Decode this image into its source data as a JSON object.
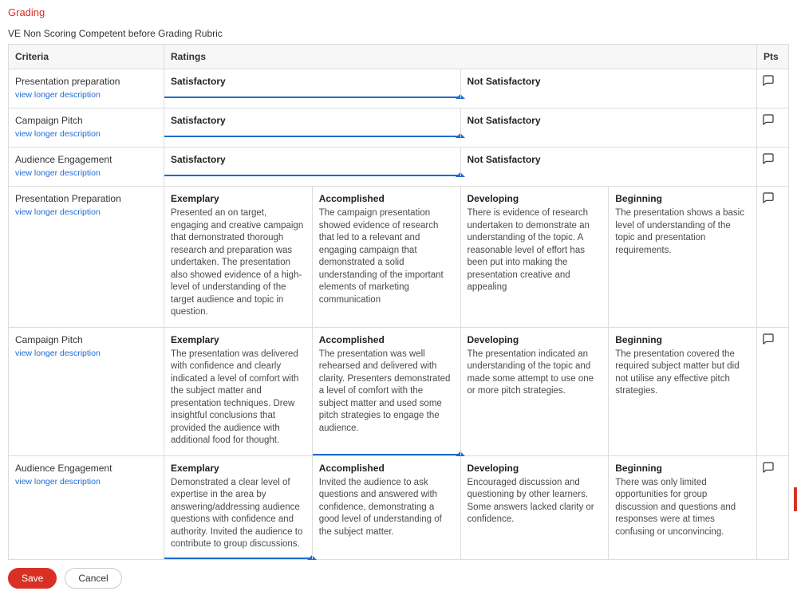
{
  "colors": {
    "accent_red": "#d93025",
    "link_blue": "#1f6bd1",
    "border_gray": "#dddddd",
    "header_bg": "#f7f7f7",
    "text_dark": "#333333",
    "desc_gray": "#4a4a4a"
  },
  "page_accent_label": "Grading",
  "rubric_title": "VE Non Scoring Competent before Grading Rubric",
  "headers": {
    "criteria": "Criteria",
    "ratings": "Ratings",
    "pts": "Pts"
  },
  "view_longer_description": "view longer description",
  "buttons": {
    "save": "Save",
    "cancel": "Cancel"
  },
  "rows": [
    {
      "criteria": "Presentation preparation",
      "ratings": [
        {
          "title": "Satisfactory",
          "desc": "",
          "selected": true
        },
        {
          "title": "Not Satisfactory",
          "desc": "",
          "selected": false
        }
      ]
    },
    {
      "criteria": "Campaign Pitch",
      "ratings": [
        {
          "title": "Satisfactory",
          "desc": "",
          "selected": true
        },
        {
          "title": "Not Satisfactory",
          "desc": "",
          "selected": false
        }
      ]
    },
    {
      "criteria": "Audience Engagement",
      "ratings": [
        {
          "title": "Satisfactory",
          "desc": "",
          "selected": true
        },
        {
          "title": "Not Satisfactory",
          "desc": "",
          "selected": false
        }
      ]
    },
    {
      "criteria": "Presentation Preparation",
      "ratings": [
        {
          "title": "Exemplary",
          "desc": "Presented an on target, engaging and creative campaign that demonstrated thorough research and preparation was undertaken. The presentation also showed evidence of a high-level of understanding of the target audience and topic in question.",
          "selected": false
        },
        {
          "title": "Accomplished",
          "desc": "The campaign presentation showed evidence of research that led to a relevant and engaging campaign that demonstrated a solid understanding of the important elements of marketing communication",
          "selected": false
        },
        {
          "title": "Developing",
          "desc": "There is evidence of research undertaken to demonstrate an understanding of the topic. A reasonable level of effort has been put into making the presentation creative and appealing",
          "selected": false
        },
        {
          "title": "Beginning",
          "desc": "The presentation shows a basic level of understanding of the topic and presentation requirements.",
          "selected": false
        }
      ]
    },
    {
      "criteria": "Campaign Pitch",
      "ratings": [
        {
          "title": "Exemplary",
          "desc": "The presentation was delivered with confidence and clearly indicated a level of comfort with the subject matter and presentation techniques. Drew insightful conclusions that provided the audience with additional food for thought.",
          "selected": false
        },
        {
          "title": "Accomplished",
          "desc": "The presentation was well rehearsed and delivered with clarity. Presenters demonstrated a level of comfort with the subject matter and used some pitch strategies to engage the audience.",
          "selected": true
        },
        {
          "title": "Developing",
          "desc": "The presentation indicated an understanding of the topic and made some attempt to use one or more pitch strategies.",
          "selected": false
        },
        {
          "title": "Beginning",
          "desc": "The presentation covered the required subject matter but did not utilise any effective pitch strategies.",
          "selected": false
        }
      ]
    },
    {
      "criteria": "Audience Engagement",
      "ratings": [
        {
          "title": "Exemplary",
          "desc": "Demonstrated a clear level of expertise in the area by answering/addressing audience questions with confidence and authority. Invited the audience to contribute to group discussions.",
          "selected": true
        },
        {
          "title": "Accomplished",
          "desc": "Invited the audience to ask questions and answered with confidence, demonstrating a good level of understanding of the subject matter.",
          "selected": false
        },
        {
          "title": "Developing",
          "desc": "Encouraged discussion and questioning by other learners. Some answers lacked clarity or confidence.",
          "selected": false
        },
        {
          "title": "Beginning",
          "desc": "There was only limited opportunities for group discussion and questions and responses were at times confusing or unconvincing.",
          "selected": false
        }
      ]
    }
  ]
}
